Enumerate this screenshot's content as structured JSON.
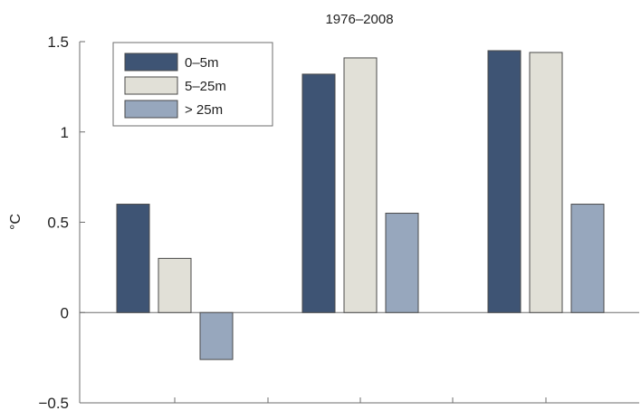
{
  "chart_data": {
    "type": "bar",
    "title": "1976–2008",
    "xlabel": "",
    "ylabel": "°C",
    "ylim": [
      -0.5,
      1.5
    ],
    "yticks": [
      {
        "value": -0.5,
        "label": "−0.5"
      },
      {
        "value": 0,
        "label": "0"
      },
      {
        "value": 0.5,
        "label": "0.5"
      },
      {
        "value": 1,
        "label": "1"
      },
      {
        "value": 1.5,
        "label": "1.5"
      }
    ],
    "categories": [
      "",
      "",
      ""
    ],
    "series": [
      {
        "name": "0–5m",
        "color": "#3e5474",
        "values": [
          0.6,
          1.32,
          1.45
        ]
      },
      {
        "name": "5–25m",
        "color": "#e1e0d7",
        "values": [
          0.3,
          1.41,
          1.44
        ]
      },
      {
        "name": "> 25m",
        "color": "#97a7bd",
        "values": [
          -0.26,
          0.55,
          0.6
        ]
      }
    ],
    "grid": false,
    "legend": "top-left"
  },
  "colors": {
    "frame": "#6e6e6e",
    "bar_stroke": "#4a4a4a",
    "text": "#222222"
  }
}
